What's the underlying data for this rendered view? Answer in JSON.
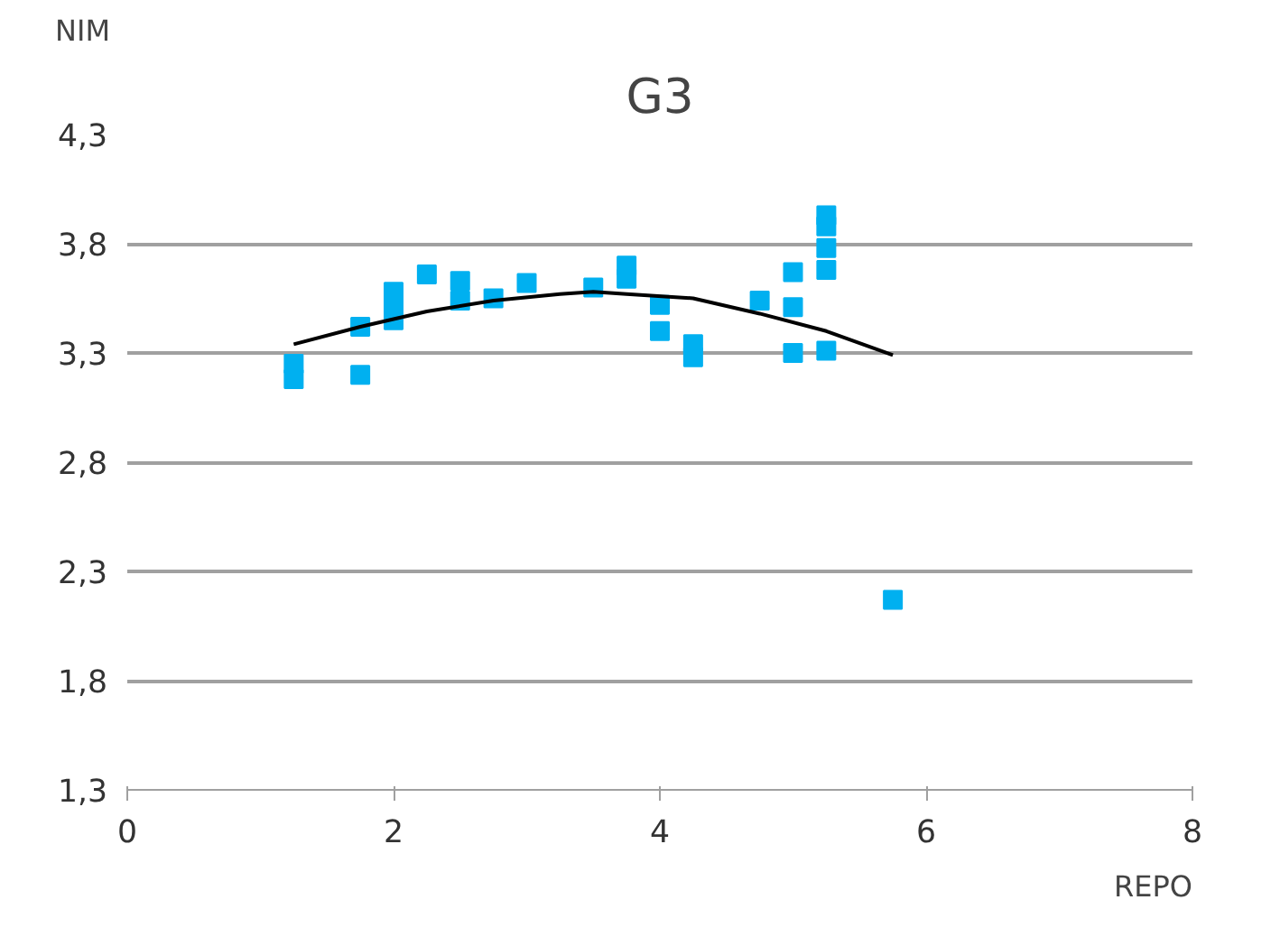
{
  "chart_data": {
    "type": "scatter",
    "title": "G3",
    "xlabel": "REPO",
    "ylabel": "NIM",
    "xlim": [
      0,
      8
    ],
    "xticks": [
      0,
      2,
      4,
      6,
      8
    ],
    "ylim": [
      1.3,
      4.3
    ],
    "yticks": [
      {
        "value": 1.3,
        "label": "1,3"
      },
      {
        "value": 1.8,
        "label": "1,8"
      },
      {
        "value": 2.3,
        "label": "2,3"
      },
      {
        "value": 2.8,
        "label": "2,8"
      },
      {
        "value": 3.3,
        "label": "3,3"
      },
      {
        "value": 3.8,
        "label": "3,8"
      },
      {
        "value": 4.3,
        "label": "4,3"
      }
    ],
    "grid": "y",
    "series": [
      {
        "marker": "square",
        "color": "#00b0f0",
        "x": [
          1.25,
          1.25,
          1.75,
          1.75,
          2,
          2,
          2,
          2.25,
          2.5,
          2.5,
          2.75,
          3,
          3.5,
          3.75,
          3.75,
          4,
          4,
          4.25,
          4.25,
          4.75,
          5,
          5,
          5,
          5.25,
          5.25,
          5.25,
          5.25,
          5.25,
          5.75
        ],
        "values": [
          3.25,
          3.18,
          3.42,
          3.2,
          3.58,
          3.52,
          3.45,
          3.66,
          3.63,
          3.54,
          3.55,
          3.62,
          3.6,
          3.7,
          3.64,
          3.52,
          3.4,
          3.34,
          3.28,
          3.54,
          3.67,
          3.51,
          3.3,
          3.93,
          3.88,
          3.78,
          3.68,
          3.31,
          2.17
        ]
      },
      {
        "type": "line",
        "marker": "none",
        "color": "#000000",
        "x": [
          1.25,
          1.75,
          2.25,
          2.75,
          3.25,
          3.5,
          3.75,
          4.25,
          4.75,
          5.25,
          5.75
        ],
        "values": [
          3.34,
          3.42,
          3.49,
          3.54,
          3.57,
          3.58,
          3.57,
          3.55,
          3.48,
          3.4,
          3.29
        ]
      }
    ]
  }
}
